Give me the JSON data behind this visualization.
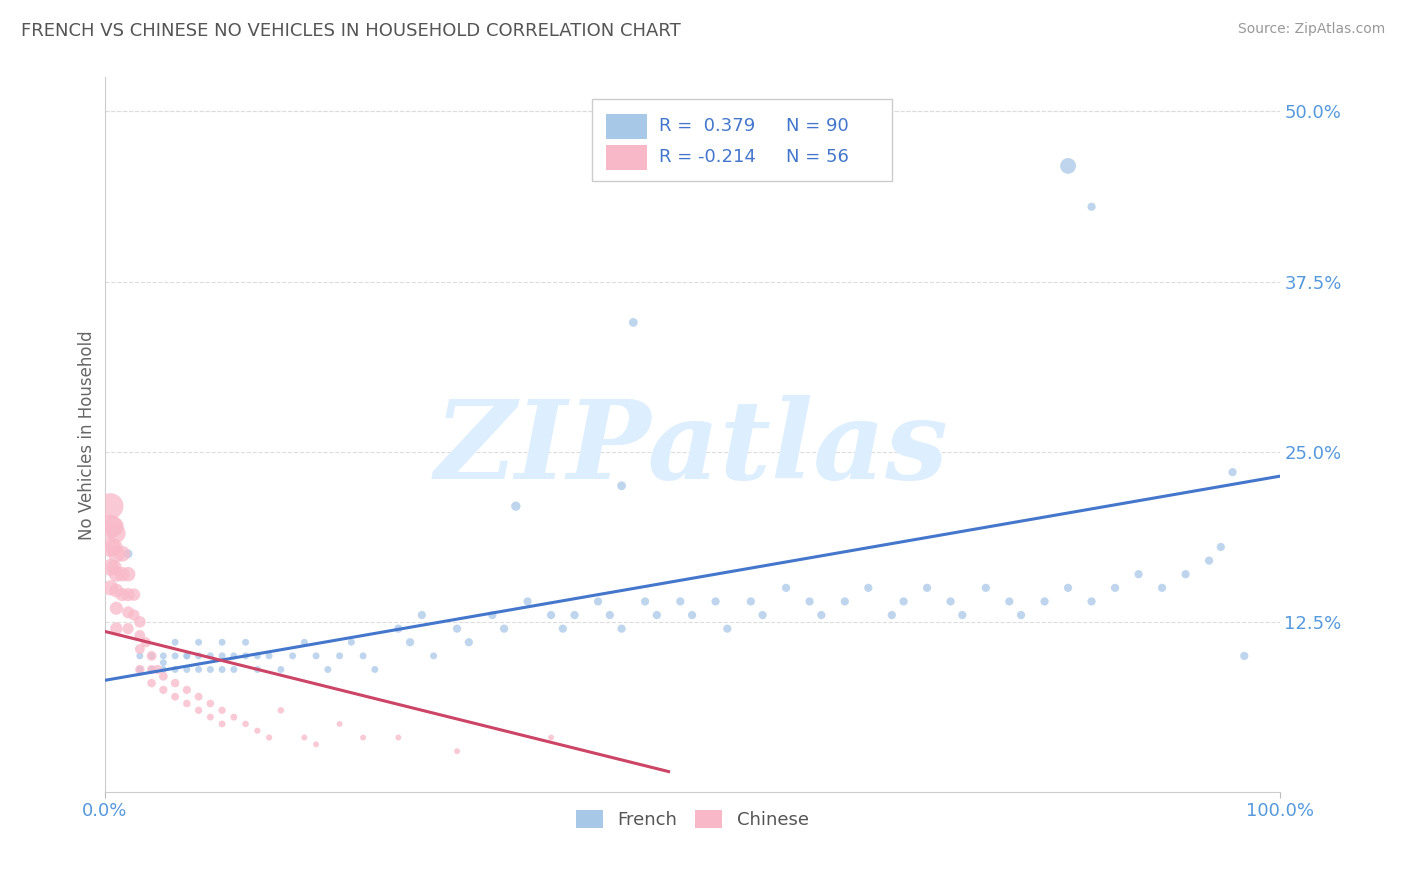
{
  "title": "FRENCH VS CHINESE NO VEHICLES IN HOUSEHOLD CORRELATION CHART",
  "source": "Source: ZipAtlas.com",
  "ylabel": "No Vehicles in Household",
  "yticks": [
    0.0,
    0.125,
    0.25,
    0.375,
    0.5
  ],
  "ytick_labels": [
    "",
    "12.5%",
    "25.0%",
    "37.5%",
    "50.0%"
  ],
  "xtick_labels": [
    "0.0%",
    "100.0%"
  ],
  "xlim": [
    0.0,
    1.0
  ],
  "ylim": [
    0.0,
    0.525
  ],
  "french_R": 0.379,
  "french_N": 90,
  "chinese_R": -0.214,
  "chinese_N": 56,
  "french_color": "#a8c8e8",
  "french_line_color": "#4477cc",
  "chinese_color": "#f8b8c8",
  "chinese_line_color": "#cc4466",
  "watermark_text": "ZIPatlas",
  "watermark_color": "#ddeeff",
  "bg_color": "#ffffff",
  "title_color": "#555555",
  "axis_tick_color": "#5599dd",
  "ylabel_color": "#666666",
  "grid_color": "#dddddd",
  "legend_text_color": "#4477cc",
  "legend_R_french": "R =  0.379",
  "legend_N_french": "N = 90",
  "legend_R_chinese": "R = -0.214",
  "legend_N_chinese": "N = 56",
  "french_line_x": [
    0.0,
    1.0
  ],
  "french_line_y": [
    0.082,
    0.232
  ],
  "chinese_line_x": [
    0.0,
    0.48
  ],
  "chinese_line_y": [
    0.118,
    0.015
  ],
  "french_x": [
    0.02,
    0.03,
    0.03,
    0.04,
    0.04,
    0.05,
    0.05,
    0.05,
    0.06,
    0.06,
    0.06,
    0.07,
    0.07,
    0.07,
    0.08,
    0.08,
    0.08,
    0.09,
    0.09,
    0.1,
    0.1,
    0.1,
    0.11,
    0.11,
    0.12,
    0.12,
    0.13,
    0.13,
    0.14,
    0.15,
    0.16,
    0.17,
    0.18,
    0.19,
    0.2,
    0.21,
    0.22,
    0.23,
    0.25,
    0.26,
    0.27,
    0.28,
    0.3,
    0.31,
    0.33,
    0.34,
    0.36,
    0.38,
    0.39,
    0.4,
    0.42,
    0.43,
    0.44,
    0.46,
    0.47,
    0.49,
    0.5,
    0.52,
    0.53,
    0.55,
    0.56,
    0.58,
    0.6,
    0.61,
    0.63,
    0.65,
    0.67,
    0.68,
    0.7,
    0.72,
    0.73,
    0.75,
    0.77,
    0.78,
    0.8,
    0.82,
    0.84,
    0.86,
    0.88,
    0.9,
    0.92,
    0.94,
    0.95,
    0.96,
    0.97,
    0.84,
    0.45,
    0.44,
    0.35,
    0.82
  ],
  "french_y": [
    0.175,
    0.09,
    0.1,
    0.09,
    0.1,
    0.09,
    0.1,
    0.095,
    0.1,
    0.09,
    0.11,
    0.09,
    0.1,
    0.1,
    0.09,
    0.1,
    0.11,
    0.1,
    0.09,
    0.1,
    0.11,
    0.09,
    0.1,
    0.09,
    0.1,
    0.11,
    0.1,
    0.09,
    0.1,
    0.09,
    0.1,
    0.11,
    0.1,
    0.09,
    0.1,
    0.11,
    0.1,
    0.09,
    0.12,
    0.11,
    0.13,
    0.1,
    0.12,
    0.11,
    0.13,
    0.12,
    0.14,
    0.13,
    0.12,
    0.13,
    0.14,
    0.13,
    0.12,
    0.14,
    0.13,
    0.14,
    0.13,
    0.14,
    0.12,
    0.14,
    0.13,
    0.15,
    0.14,
    0.13,
    0.14,
    0.15,
    0.13,
    0.14,
    0.15,
    0.14,
    0.13,
    0.15,
    0.14,
    0.13,
    0.14,
    0.15,
    0.14,
    0.15,
    0.16,
    0.15,
    0.16,
    0.17,
    0.18,
    0.235,
    0.1,
    0.43,
    0.345,
    0.225,
    0.21,
    0.46
  ],
  "french_s": [
    40,
    25,
    25,
    25,
    25,
    25,
    25,
    25,
    25,
    25,
    25,
    25,
    25,
    25,
    25,
    25,
    25,
    25,
    25,
    25,
    25,
    25,
    25,
    25,
    25,
    25,
    25,
    25,
    25,
    25,
    25,
    25,
    25,
    25,
    25,
    25,
    25,
    25,
    35,
    35,
    35,
    25,
    35,
    35,
    35,
    35,
    35,
    35,
    35,
    35,
    35,
    35,
    35,
    35,
    35,
    35,
    35,
    35,
    35,
    35,
    35,
    35,
    35,
    35,
    35,
    35,
    35,
    35,
    35,
    35,
    35,
    35,
    35,
    35,
    35,
    35,
    35,
    35,
    35,
    35,
    35,
    35,
    35,
    35,
    35,
    35,
    40,
    40,
    45,
    130
  ],
  "chinese_x": [
    0.005,
    0.005,
    0.005,
    0.005,
    0.005,
    0.008,
    0.008,
    0.008,
    0.01,
    0.01,
    0.01,
    0.01,
    0.01,
    0.01,
    0.015,
    0.015,
    0.015,
    0.02,
    0.02,
    0.02,
    0.02,
    0.025,
    0.025,
    0.03,
    0.03,
    0.03,
    0.03,
    0.035,
    0.04,
    0.04,
    0.04,
    0.045,
    0.05,
    0.05,
    0.06,
    0.06,
    0.07,
    0.07,
    0.08,
    0.08,
    0.09,
    0.09,
    0.1,
    0.1,
    0.11,
    0.12,
    0.13,
    0.14,
    0.15,
    0.17,
    0.18,
    0.2,
    0.22,
    0.25,
    0.3,
    0.38
  ],
  "chinese_y": [
    0.21,
    0.195,
    0.18,
    0.165,
    0.15,
    0.195,
    0.18,
    0.165,
    0.19,
    0.175,
    0.16,
    0.148,
    0.135,
    0.12,
    0.175,
    0.16,
    0.145,
    0.16,
    0.145,
    0.132,
    0.12,
    0.145,
    0.13,
    0.125,
    0.115,
    0.105,
    0.09,
    0.11,
    0.1,
    0.09,
    0.08,
    0.09,
    0.085,
    0.075,
    0.08,
    0.07,
    0.075,
    0.065,
    0.07,
    0.06,
    0.065,
    0.055,
    0.06,
    0.05,
    0.055,
    0.05,
    0.045,
    0.04,
    0.06,
    0.04,
    0.035,
    0.05,
    0.04,
    0.04,
    0.03,
    0.04
  ],
  "chinese_s": [
    350,
    280,
    200,
    150,
    120,
    200,
    150,
    120,
    180,
    150,
    120,
    100,
    90,
    80,
    130,
    110,
    90,
    110,
    90,
    75,
    65,
    80,
    65,
    70,
    60,
    50,
    45,
    55,
    50,
    42,
    38,
    45,
    40,
    35,
    38,
    32,
    35,
    30,
    32,
    28,
    30,
    25,
    28,
    24,
    25,
    22,
    20,
    20,
    22,
    18,
    18,
    18,
    18,
    18,
    18,
    18
  ]
}
